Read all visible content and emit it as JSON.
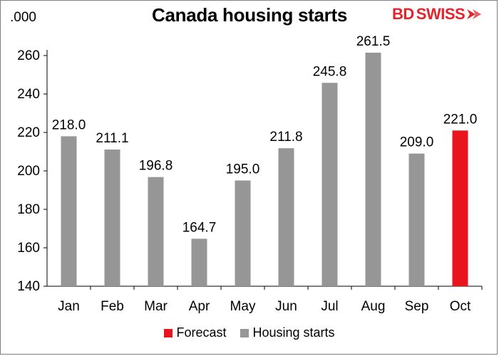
{
  "logo": {
    "part1": "BD",
    "part2": "SWISS"
  },
  "colors": {
    "housing_starts": "#969696",
    "forecast": "#e8141e",
    "logo": "#e3242b"
  },
  "chart_data": {
    "type": "bar",
    "title": "Canada housing starts",
    "unit_label": ".000",
    "categories": [
      "Jan",
      "Feb",
      "Mar",
      "Apr",
      "May",
      "Jun",
      "Jul",
      "Aug",
      "Sep",
      "Oct"
    ],
    "series": [
      {
        "name": "Housing starts",
        "values": [
          218.0,
          211.1,
          196.8,
          164.7,
          195.0,
          211.8,
          245.8,
          261.5,
          209.0,
          null
        ]
      },
      {
        "name": "Forecast",
        "values": [
          null,
          null,
          null,
          null,
          null,
          null,
          null,
          null,
          null,
          221.0
        ]
      }
    ],
    "data_labels": [
      "218.0",
      "211.1",
      "196.8",
      "164.7",
      "195.0",
      "211.8",
      "245.8",
      "261.5",
      "209.0",
      "221.0"
    ],
    "ylim": [
      140,
      260
    ],
    "yticks": [
      140,
      160,
      180,
      200,
      220,
      240,
      260
    ],
    "grid": false,
    "legend": {
      "position": "bottom",
      "entries": [
        "Forecast",
        "Housing starts"
      ]
    }
  }
}
